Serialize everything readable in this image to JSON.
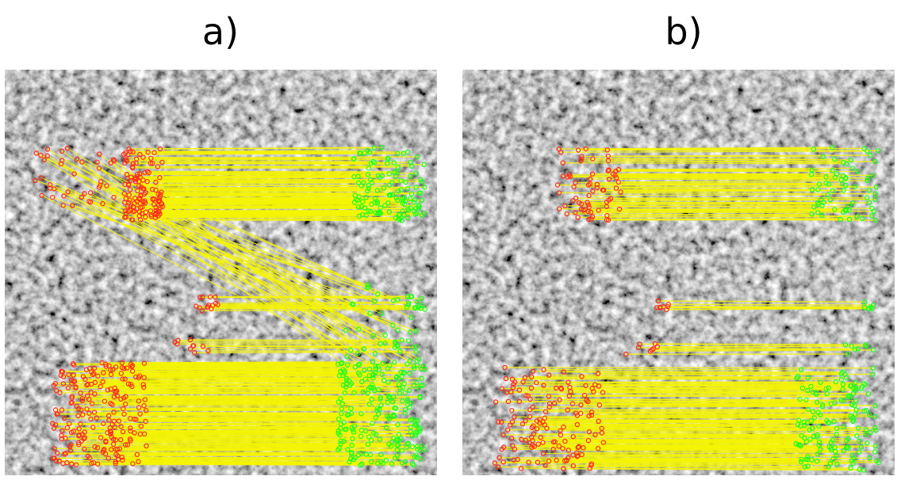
{
  "labels": {
    "a": "a)",
    "b": "b)"
  },
  "colors": {
    "background": "#ffffff",
    "match_line": "#f5f500",
    "source_keypoint": "#ff2a1a",
    "target_keypoint": "#1aff1a",
    "texture_dark": "#2a2a2a",
    "texture_light": "#d8d8d8"
  },
  "panels": [
    {
      "id": "a",
      "outliers_present": true
    },
    {
      "id": "b",
      "outliers_present": false
    }
  ]
}
